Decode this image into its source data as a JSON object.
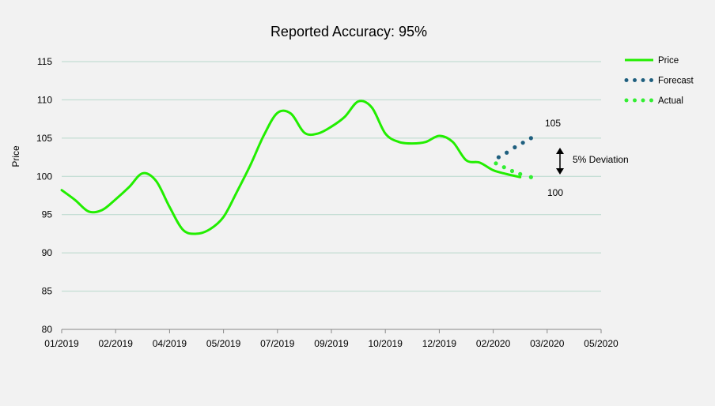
{
  "chart_data": {
    "type": "line",
    "title": "Reported Accuracy: 95%",
    "xlabel": "",
    "ylabel": "Price",
    "ylim": [
      80,
      115
    ],
    "yticks": [
      80,
      85,
      90,
      95,
      100,
      105,
      110,
      115
    ],
    "x_tick_labels": [
      "01/2019",
      "02/2019",
      "04/2019",
      "05/2019",
      "07/2019",
      "09/2019",
      "10/2019",
      "12/2019",
      "02/2020",
      "03/2020",
      "05/2020"
    ],
    "grid": true,
    "legend_position": "top-right",
    "series": [
      {
        "name": "Price",
        "style": "solid",
        "color": "#22ee00",
        "x": [
          0,
          0.25,
          0.5,
          0.75,
          1,
          1.25,
          1.5,
          1.75,
          2,
          2.25,
          2.5,
          2.75,
          3,
          3.25,
          3.5,
          3.75,
          4,
          4.25,
          4.5,
          4.75,
          5,
          5.25,
          5.5,
          5.75,
          6,
          6.25,
          6.5,
          6.75,
          7,
          7.25,
          7.5,
          7.75,
          8,
          8.25,
          8.5
        ],
        "y": [
          98.2,
          96.9,
          95.4,
          95.6,
          97.0,
          98.6,
          100.4,
          99.4,
          96.0,
          93.0,
          92.5,
          93.1,
          94.7,
          98.0,
          101.5,
          105.4,
          108.3,
          108.2,
          105.7,
          105.6,
          106.5,
          107.8,
          109.8,
          109.0,
          105.6,
          104.5,
          104.3,
          104.5,
          105.3,
          104.5,
          102.1,
          101.8,
          100.8,
          100.3,
          99.9
        ]
      },
      {
        "name": "Forecast",
        "style": "dotted",
        "color": "#1f5f7f",
        "x": [
          8.1,
          8.25,
          8.4,
          8.55,
          8.7
        ],
        "y": [
          102.5,
          103.1,
          103.8,
          104.4,
          105.0
        ]
      },
      {
        "name": "Actual",
        "style": "dotted",
        "color": "#33ee33",
        "x": [
          8.05,
          8.2,
          8.35,
          8.5,
          8.7
        ],
        "y": [
          101.7,
          101.2,
          100.7,
          100.3,
          99.9
        ]
      }
    ],
    "annotations": {
      "forecast_end_label": "105",
      "actual_end_label": "100",
      "deviation_label": "5% Deviation"
    },
    "colors": {
      "background": "#f2f2f2",
      "grid": "#b8d8cc",
      "axis": "#888888"
    }
  }
}
